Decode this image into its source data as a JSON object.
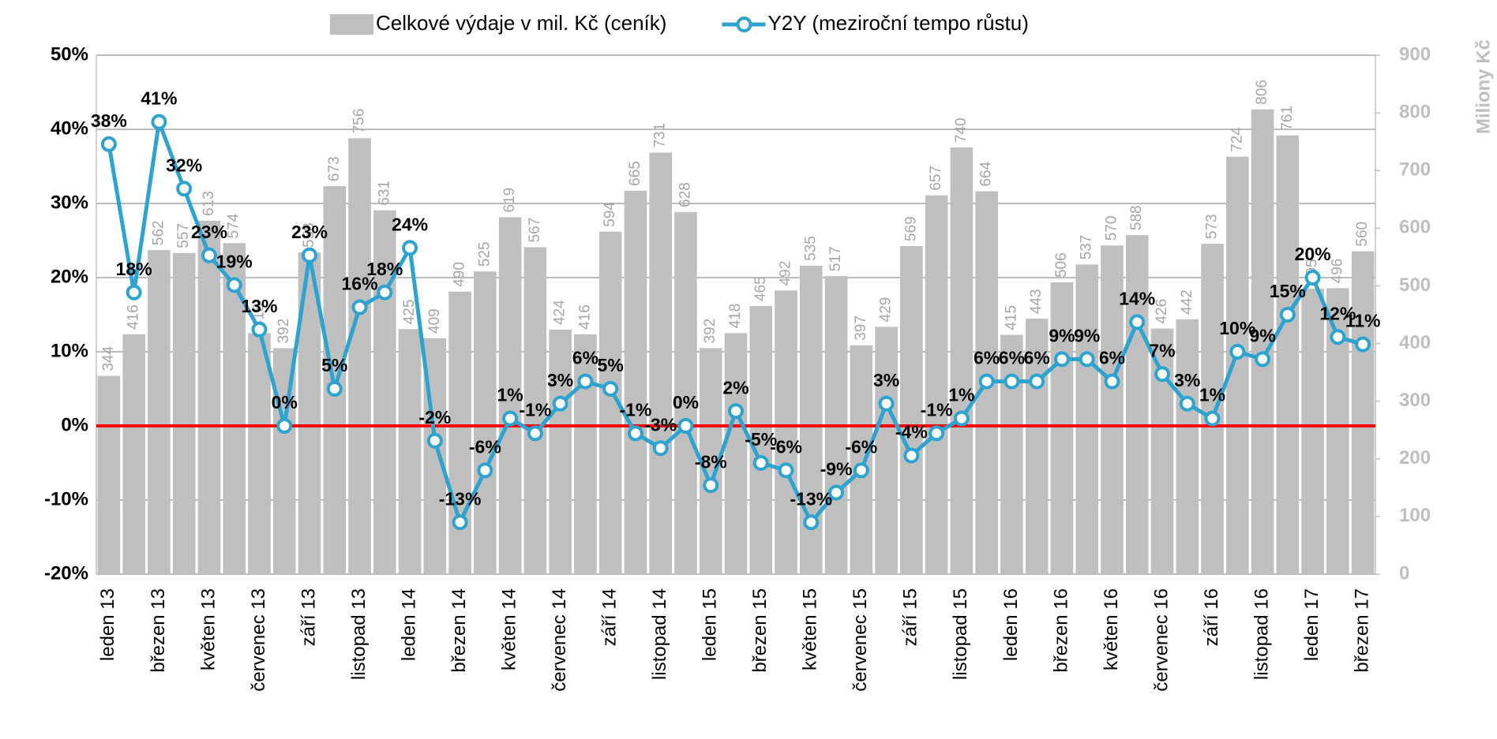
{
  "chart_data": {
    "type": "combo",
    "y2label": "Miliony Kč",
    "categories": [
      "leden 13",
      null,
      "březen 13",
      null,
      "květen 13",
      null,
      "červenec 13",
      null,
      "září 13",
      null,
      "listopad 13",
      null,
      "leden 14",
      null,
      "březen 14",
      null,
      "květen 14",
      null,
      "červenec 14",
      null,
      "září 14",
      null,
      "listopad 14",
      null,
      "leden 15",
      null,
      "březen 15",
      null,
      "květen 15",
      null,
      "červenec 15",
      null,
      "září 15",
      null,
      "listopad 15",
      null,
      "leden 16",
      null,
      "březen 16",
      null,
      "květen 16",
      null,
      "červenec 16",
      null,
      "září 16",
      null,
      "listopad 16",
      null,
      "leden 17",
      null,
      "březen 17"
    ],
    "series": [
      {
        "name": "Celkové výdaje v mil. Kč (ceník)",
        "type": "bar",
        "axis": "y2",
        "color": "#bfbfbf",
        "values": [
          344,
          416,
          562,
          557,
          613,
          574,
          418,
          392,
          558,
          673,
          756,
          631,
          425,
          409,
          490,
          525,
          619,
          567,
          424,
          416,
          594,
          665,
          731,
          628,
          392,
          418,
          465,
          492,
          535,
          517,
          397,
          429,
          569,
          657,
          740,
          664,
          415,
          443,
          506,
          537,
          570,
          588,
          426,
          442,
          573,
          724,
          806,
          761,
          495,
          496,
          560
        ]
      },
      {
        "name": "Y2Y (meziroční tempo růstu)",
        "type": "line",
        "color": "#2ea3d0",
        "values": [
          38,
          18,
          41,
          32,
          23,
          19,
          13,
          0,
          23,
          5,
          16,
          18,
          24,
          -2,
          -13,
          -6,
          1,
          -1,
          3,
          6,
          5,
          -1,
          -3,
          0,
          -8,
          2,
          -5,
          -6,
          -13,
          -9,
          -6,
          3,
          -4,
          -1,
          1,
          6,
          6,
          6,
          9,
          9,
          6,
          14,
          7,
          3,
          1,
          10,
          9,
          15,
          20,
          12,
          11
        ],
        "value_labels": [
          "38%",
          "18%",
          "41%",
          "32%",
          "23%",
          "19%",
          "13%",
          "0%",
          "23%",
          "5%",
          "16%",
          "18%",
          "24%",
          "-2%",
          "-13%",
          "-6%",
          "1%",
          "-1%",
          "3%",
          "6%",
          "5%",
          "-1%",
          "-3%",
          "0%",
          "-8%",
          "2%",
          "-5%",
          "-6%",
          "-13%",
          "-9%",
          "-6%",
          "3%",
          "-4%",
          "-1%",
          "1%",
          "6%",
          "6%",
          "6%",
          "9%",
          "9%",
          "6%",
          "14%",
          "7%",
          "3%",
          "1%",
          "10%",
          "9%",
          "15%",
          "20%",
          "12%",
          "11%"
        ]
      }
    ],
    "ylim": [
      -20,
      50
    ],
    "yticks": [
      {
        "value": -20,
        "label": "-20%"
      },
      {
        "value": -10,
        "label": "-10%"
      },
      {
        "value": 0,
        "label": "0%"
      },
      {
        "value": 10,
        "label": "10%"
      },
      {
        "value": 20,
        "label": "20%"
      },
      {
        "value": 30,
        "label": "30%"
      },
      {
        "value": 40,
        "label": "40%"
      },
      {
        "value": 50,
        "label": "50%"
      }
    ],
    "y2lim": [
      0,
      900
    ],
    "y2ticks": [
      0,
      100,
      200,
      300,
      400,
      500,
      600,
      700,
      800,
      900
    ],
    "grid": true
  }
}
